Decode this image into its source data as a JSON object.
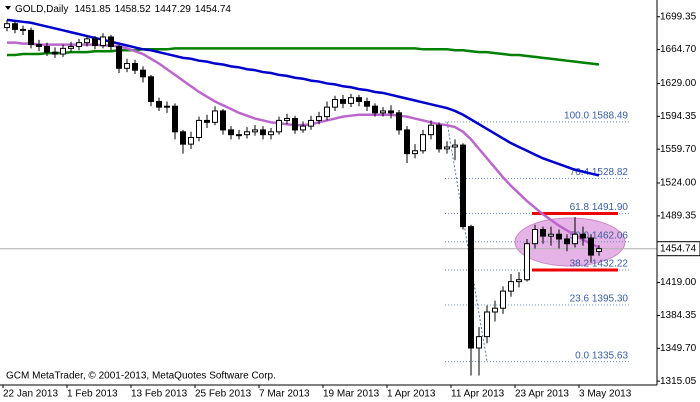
{
  "chart_data": {
    "type": "candlestick",
    "title": "GOLD,Daily",
    "footer": "GCM MetaTrader, © 2001-2013, MetaQuotes Software Corp.",
    "categories": [
      "22 Jan 2013",
      null,
      null,
      null,
      null,
      null,
      null,
      null,
      "1 Feb 2013",
      null,
      null,
      null,
      null,
      null,
      null,
      null,
      "13 Feb 2013",
      null,
      null,
      null,
      null,
      null,
      null,
      null,
      "25 Feb 2013",
      null,
      null,
      null,
      null,
      null,
      null,
      null,
      "7 Mar 2013",
      null,
      null,
      null,
      null,
      null,
      null,
      null,
      "19 Mar 2013",
      null,
      null,
      null,
      null,
      null,
      null,
      null,
      "1 Apr 2013",
      null,
      null,
      null,
      null,
      null,
      null,
      null,
      "11 Apr 2013",
      null,
      null,
      null,
      null,
      null,
      null,
      null,
      "23 Apr 2013",
      null,
      null,
      null,
      null,
      null,
      null,
      null,
      "3 May 2013",
      null,
      null
    ],
    "open": [
      1688,
      1692,
      1686,
      1685,
      1670,
      1668,
      1662,
      1660,
      1666,
      1668,
      1672,
      1676,
      1669,
      1678,
      1668,
      1645,
      1650,
      1643,
      1636,
      1610,
      1604,
      1605,
      1578,
      1565,
      1572,
      1590,
      1588,
      1600,
      1580,
      1575,
      1575,
      1578,
      1580,
      1575,
      1578,
      1590,
      1592,
      1580,
      1584,
      1590,
      1594,
      1604,
      1612,
      1608,
      1614,
      1610,
      1605,
      1598,
      1600,
      1598,
      1580,
      1555,
      1558,
      1575,
      1585,
      1560,
      1562,
      1564,
      1478,
      1350,
      1362,
      1388,
      1392,
      1410,
      1420,
      1422,
      1460,
      1475,
      1468,
      1470,
      1465,
      1460,
      1470,
      1466,
      1451.85
    ],
    "high": [
      1696,
      1695,
      1690,
      1688,
      1675,
      1672,
      1667,
      1670,
      1673,
      1676,
      1680,
      1679,
      1682,
      1680,
      1670,
      1655,
      1654,
      1647,
      1638,
      1614,
      1610,
      1608,
      1580,
      1578,
      1594,
      1596,
      1605,
      1602,
      1584,
      1580,
      1583,
      1585,
      1584,
      1582,
      1594,
      1597,
      1595,
      1589,
      1595,
      1599,
      1610,
      1616,
      1617,
      1618,
      1617,
      1614,
      1608,
      1604,
      1606,
      1601,
      1584,
      1565,
      1580,
      1590,
      1588,
      1568,
      1570,
      1566,
      1480,
      1372,
      1395,
      1400,
      1415,
      1428,
      1430,
      1465,
      1480,
      1478,
      1478,
      1475,
      1470,
      1488,
      1478,
      1470,
      1458.52
    ],
    "low": [
      1684,
      1682,
      1680,
      1666,
      1663,
      1658,
      1656,
      1657,
      1662,
      1664,
      1668,
      1665,
      1666,
      1664,
      1640,
      1641,
      1639,
      1630,
      1605,
      1600,
      1598,
      1570,
      1555,
      1560,
      1568,
      1582,
      1585,
      1575,
      1570,
      1570,
      1571,
      1574,
      1570,
      1570,
      1575,
      1586,
      1576,
      1577,
      1580,
      1586,
      1590,
      1600,
      1603,
      1604,
      1605,
      1600,
      1594,
      1594,
      1592,
      1575,
      1545,
      1550,
      1555,
      1570,
      1556,
      1555,
      1548,
      1475,
      1321,
      1321,
      1355,
      1378,
      1386,
      1404,
      1414,
      1420,
      1455,
      1460,
      1458,
      1455,
      1452,
      1456,
      1458,
      1440,
      1447.29
    ],
    "close": [
      1692,
      1686,
      1685,
      1670,
      1668,
      1662,
      1660,
      1666,
      1668,
      1672,
      1676,
      1669,
      1678,
      1668,
      1645,
      1650,
      1643,
      1636,
      1610,
      1604,
      1605,
      1578,
      1565,
      1572,
      1590,
      1588,
      1600,
      1580,
      1575,
      1575,
      1578,
      1580,
      1575,
      1578,
      1590,
      1592,
      1580,
      1584,
      1590,
      1594,
      1604,
      1612,
      1608,
      1614,
      1610,
      1605,
      1598,
      1600,
      1598,
      1580,
      1555,
      1558,
      1575,
      1585,
      1560,
      1562,
      1564,
      1478,
      1350,
      1362,
      1388,
      1392,
      1410,
      1420,
      1422,
      1460,
      1475,
      1468,
      1470,
      1465,
      1460,
      1470,
      1466,
      1448,
      1454.74
    ],
    "up_color": "#ffffff",
    "down_color": "#000000",
    "lines": [
      {
        "color": "#008000",
        "values": [
          1659,
          1659,
          1660,
          1660,
          1660,
          1661,
          1661,
          1661,
          1662,
          1662,
          1662,
          1663,
          1663,
          1663,
          1664,
          1664,
          1664,
          1665,
          1665,
          1665,
          1665,
          1666,
          1666,
          1666,
          1666,
          1666,
          1666,
          1666,
          1666,
          1666,
          1666,
          1666,
          1666,
          1666,
          1666,
          1666,
          1666,
          1666,
          1666,
          1666,
          1666,
          1666,
          1666,
          1666,
          1666,
          1666,
          1666,
          1666,
          1666,
          1666,
          1666,
          1666,
          1665,
          1665,
          1665,
          1665,
          1664,
          1664,
          1663,
          1662,
          1662,
          1661,
          1660,
          1659,
          1659,
          1658,
          1657,
          1656,
          1655,
          1654,
          1653,
          1652,
          1651,
          1650,
          1649
        ]
      },
      {
        "color": "#0000cc",
        "values": [
          1696,
          1695,
          1694,
          1693,
          1691,
          1689,
          1687,
          1685,
          1683,
          1681,
          1679,
          1677,
          1675,
          1673,
          1671,
          1669,
          1667,
          1665,
          1664,
          1662,
          1660,
          1658,
          1656,
          1655,
          1653,
          1652,
          1650,
          1649,
          1647,
          1646,
          1644,
          1643,
          1641,
          1640,
          1638,
          1637,
          1635,
          1634,
          1632,
          1631,
          1629,
          1628,
          1626,
          1625,
          1623,
          1622,
          1620,
          1619,
          1617,
          1615,
          1613,
          1611,
          1609,
          1607,
          1605,
          1603,
          1600,
          1596,
          1591,
          1586,
          1581,
          1576,
          1571,
          1566,
          1562,
          1558,
          1554,
          1550,
          1547,
          1544,
          1541,
          1538,
          1536,
          1534,
          1532
        ]
      },
      {
        "color": "#bb66cc",
        "values": [
          1672,
          1672,
          1671,
          1671,
          1670,
          1670,
          1670,
          1670,
          1670,
          1670,
          1670,
          1670,
          1669,
          1669,
          1668,
          1666,
          1663,
          1660,
          1655,
          1650,
          1644,
          1638,
          1632,
          1626,
          1620,
          1615,
          1610,
          1606,
          1602,
          1598,
          1595,
          1592,
          1590,
          1588,
          1587,
          1586,
          1585,
          1585,
          1586,
          1588,
          1590,
          1592,
          1594,
          1595,
          1596,
          1596,
          1596,
          1596,
          1596,
          1595,
          1594,
          1592,
          1590,
          1588,
          1586,
          1585,
          1583,
          1578,
          1570,
          1560,
          1550,
          1540,
          1530,
          1521,
          1513,
          1505,
          1498,
          1491,
          1485,
          1479,
          1474,
          1469,
          1464,
          1460,
          1456
        ]
      }
    ],
    "fibonacci": [
      {
        "value": 1588.49,
        "label": "100.0 1588.49"
      },
      {
        "value": 1528.82,
        "label": "76.4 1528.82"
      },
      {
        "value": 1491.9,
        "label": "61.8 1491.90"
      },
      {
        "value": 1462.06,
        "label": "50.0 1462.06"
      },
      {
        "value": 1432.22,
        "label": "38.2 1432.22"
      },
      {
        "value": 1395.3,
        "label": "23.6 1395.30"
      },
      {
        "value": 1335.63,
        "label": "0.0 1335.63"
      }
    ],
    "ylim": [
      1311,
      1717
    ],
    "yticks": [
      1699.35,
      {
        "value": 1664.7,
        "label": "1664.70"
      },
      {
        "value": 1629,
        "label": "1629.00"
      },
      1594.35,
      {
        "value": 1559.7,
        "label": "1559.70"
      },
      {
        "value": 1524,
        "label": "1524.00"
      },
      1489.35,
      {
        "value": 1419,
        "label": "1419.00"
      },
      1384.35,
      {
        "value": 1349.7,
        "label": "1349.70"
      },
      1315.05
    ]
  }
}
